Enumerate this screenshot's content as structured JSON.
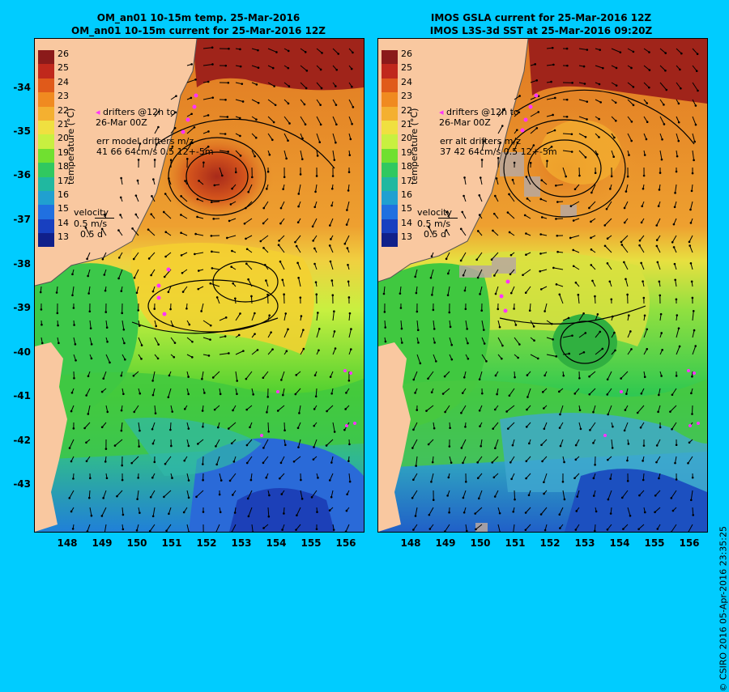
{
  "titles": {
    "left_line1": "OM_an01 10-15m temp. 25-Mar-2016",
    "left_line2": "OM_an01 10-15m current for 25-Mar-2016 12Z",
    "right_line1": "IMOS GSLA current for 25-Mar-2016 12Z",
    "right_line2": "IMOS L3S-3d SST at 25-Mar-2016 09:20Z"
  },
  "y_axis_labels": [
    "-34",
    "-35",
    "-36",
    "-37",
    "-38",
    "-39",
    "-40",
    "-41",
    "-42",
    "-43"
  ],
  "x_axis_labels": [
    "148",
    "149",
    "150",
    "151",
    "152",
    "153",
    "154",
    "155",
    "156"
  ],
  "colorbar": {
    "ticks": [
      "26",
      "25",
      "24",
      "23",
      "22",
      "21",
      "20",
      "19",
      "18",
      "17",
      "16",
      "15",
      "14",
      "13"
    ],
    "title": "temperature (°C)",
    "colors": [
      "#8b1a1a",
      "#c0281c",
      "#e05a1a",
      "#f08a20",
      "#f4b030",
      "#f0e040",
      "#c8f040",
      "#70e030",
      "#30c860",
      "#20b8a0",
      "#20a0d0",
      "#2070e0",
      "#1840c0",
      "#10208a"
    ]
  },
  "left_panel": {
    "drifters_line1": "drifters @12h to",
    "drifters_line2": "26-Mar 00Z",
    "err_line1": "err model drifters m/z",
    "err_line2": "41 66 64cm/s 0.5 12+-5m",
    "velocity_label": "velocity",
    "velocity_scale": "0.5 m/s",
    "velocity_time": "0.5 d"
  },
  "right_panel": {
    "drifters_line1": "drifters @12h to",
    "drifters_line2": "26-Mar 00Z",
    "err_line1": "err alt drifters m/z",
    "err_line2": "37 42 64cm/s 0.5 12+-5m",
    "velocity_label": "velocity",
    "velocity_scale": "0.5 m/s",
    "velocity_time": "0.5 d"
  },
  "credit": "© CSIRO 2016   05-Apr-2016 23:35:25"
}
